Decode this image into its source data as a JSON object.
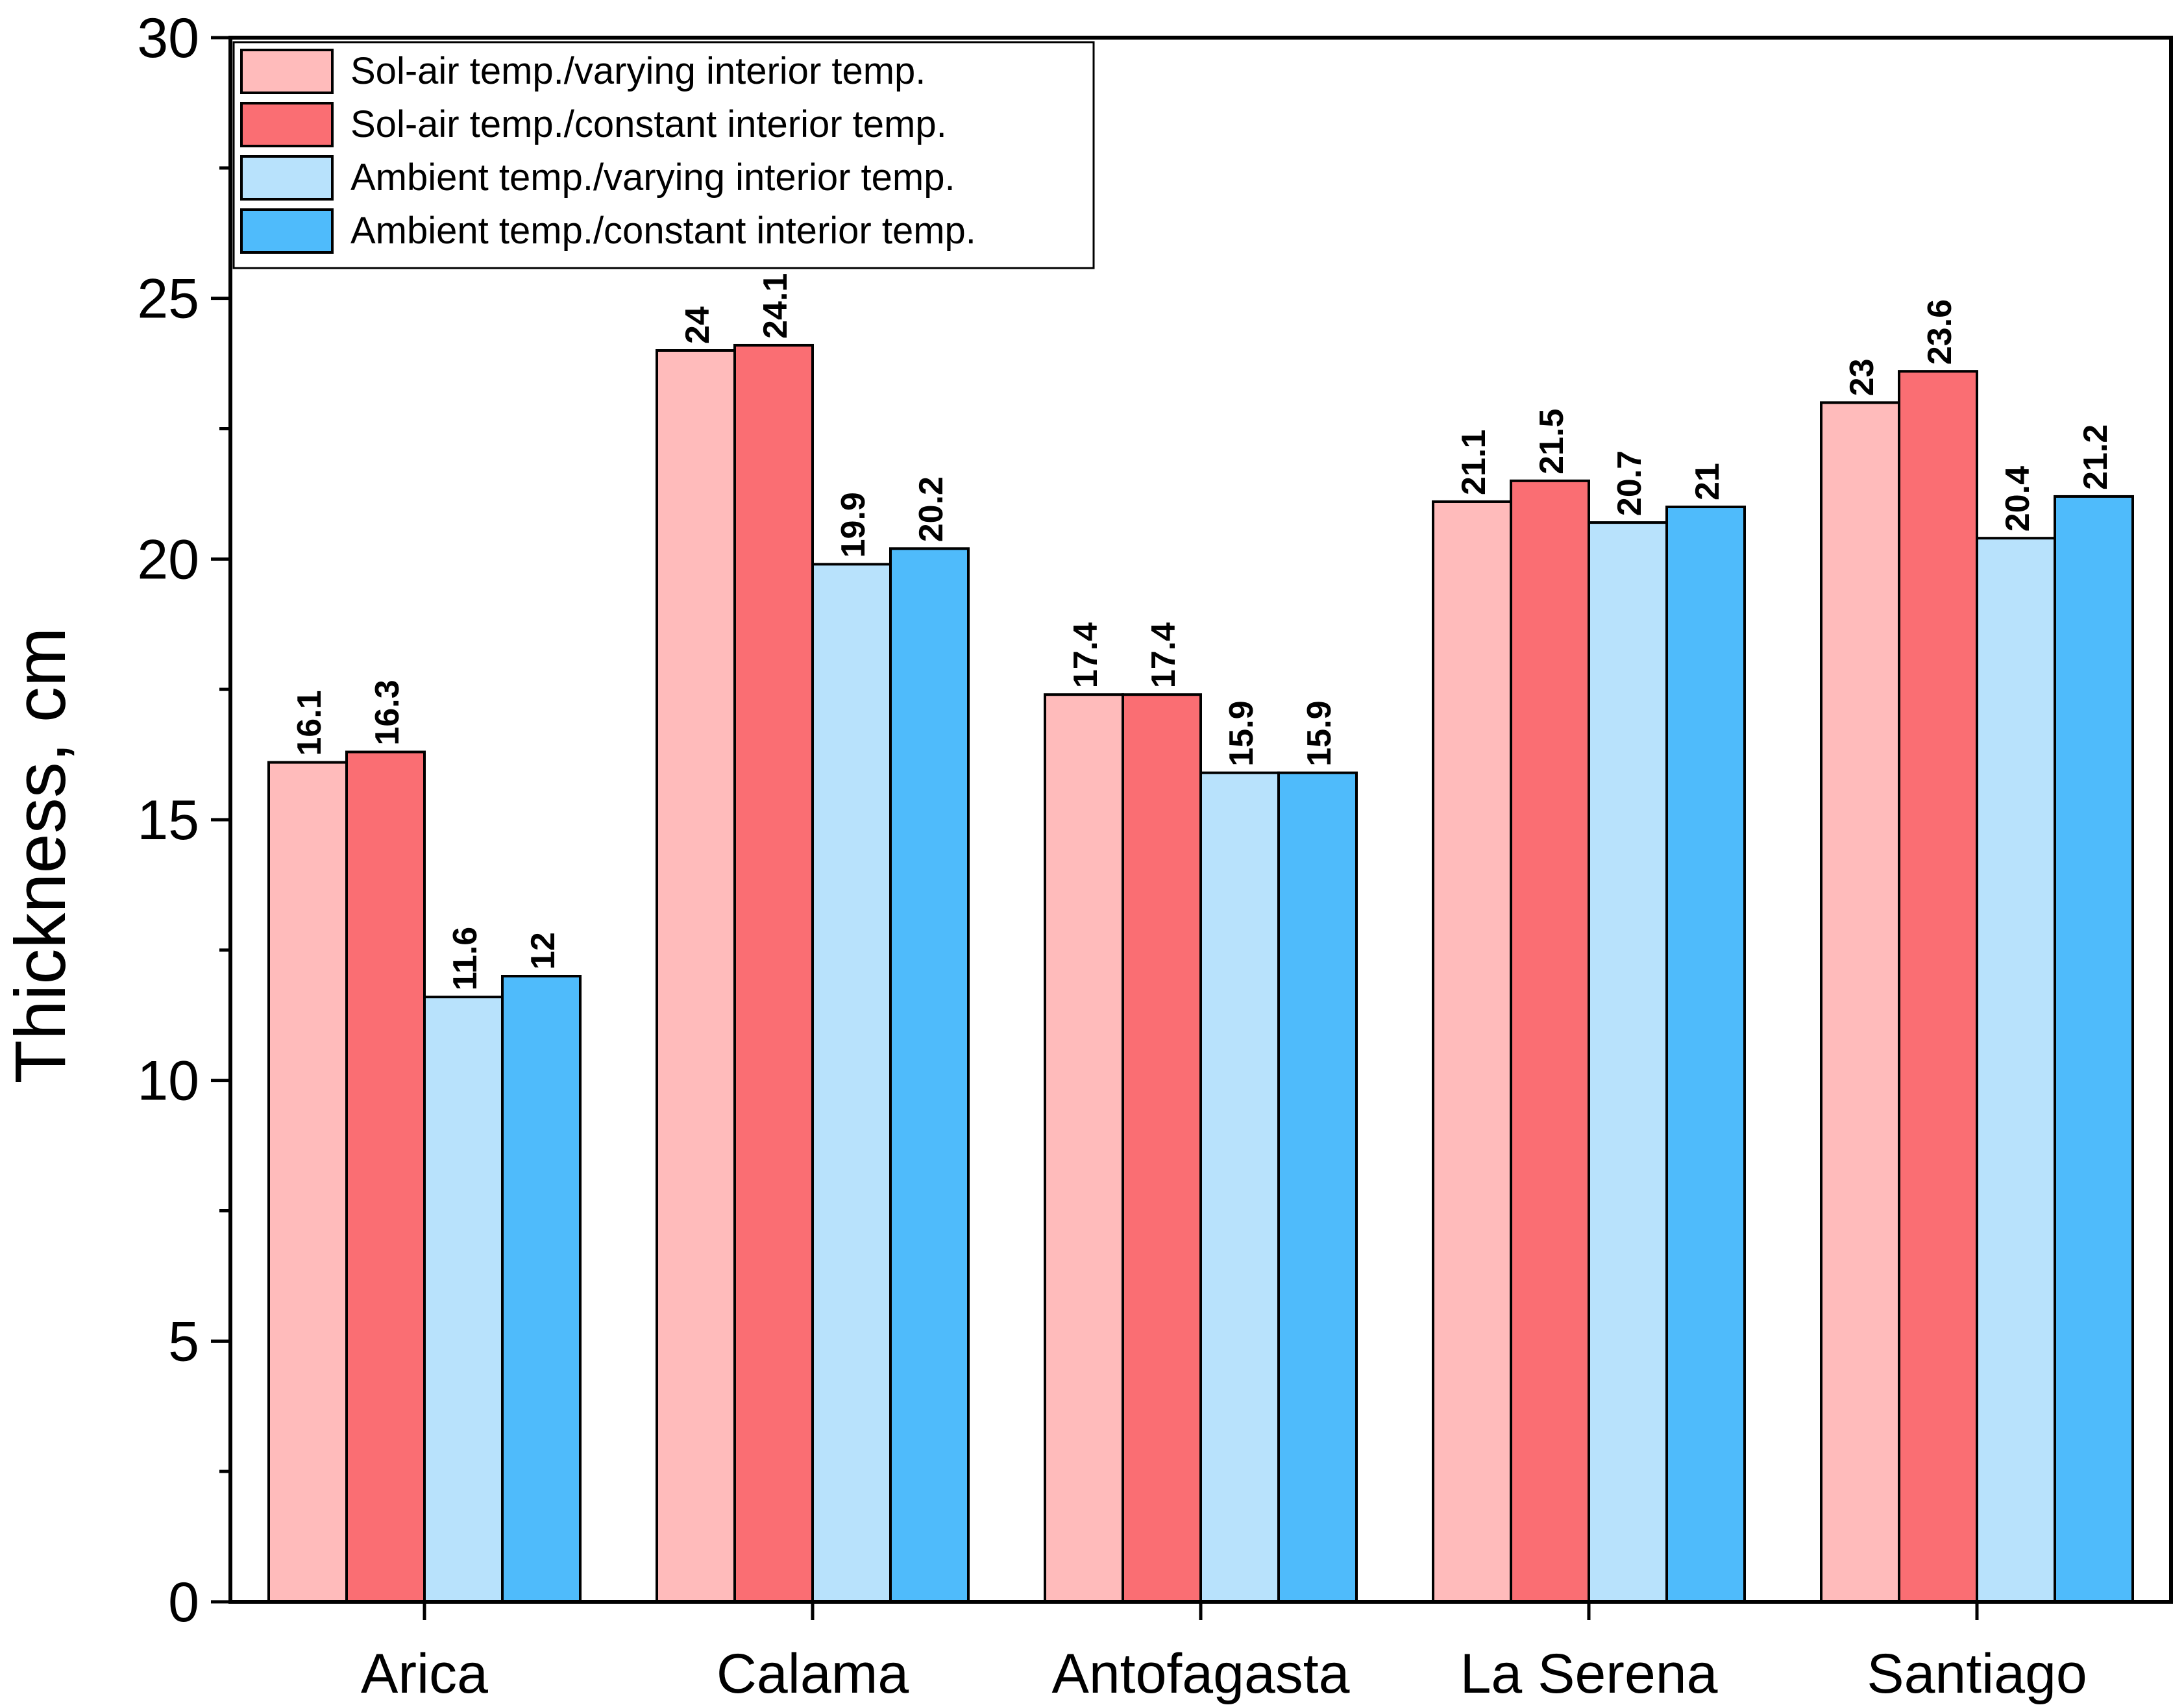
{
  "chart_data": {
    "type": "bar",
    "title": "",
    "xlabel": "",
    "ylabel": "Thickness, cm",
    "ylim": [
      0,
      30
    ],
    "yticks": [
      {
        "value": 0,
        "label": "0"
      },
      {
        "value": 5,
        "label": "5"
      },
      {
        "value": 10,
        "label": "10"
      },
      {
        "value": 15,
        "label": "15"
      },
      {
        "value": 20,
        "label": "20"
      },
      {
        "value": 25,
        "label": "25"
      },
      {
        "value": 30,
        "label": "30"
      }
    ],
    "categories": [
      "Arica",
      "Calama",
      "Antofagasta",
      "La Serena",
      "Santiago"
    ],
    "series": [
      {
        "name": "Sol-air temp./varying interior temp.",
        "color": "#FFBBBB",
        "values": [
          16.1,
          24,
          17.4,
          21.1,
          23
        ],
        "labels": [
          "16.1",
          "24",
          "17.4",
          "21.1",
          "23"
        ]
      },
      {
        "name": "Sol-air temp./constant interior temp.",
        "color": "#FA6E73",
        "values": [
          16.3,
          24.1,
          17.4,
          21.5,
          23.6
        ],
        "labels": [
          "16.3",
          "24.1",
          "17.4",
          "21.5",
          "23.6"
        ]
      },
      {
        "name": "Ambient temp./varying interior temp.",
        "color": "#B8E2FC",
        "values": [
          11.6,
          19.9,
          15.9,
          20.7,
          20.4
        ],
        "labels": [
          "11.6",
          "19.9",
          "15.9",
          "20.7",
          "20.4"
        ]
      },
      {
        "name": "Ambient temp./constant interior temp.",
        "color": "#4FBBFB",
        "values": [
          12,
          20.2,
          15.9,
          21,
          21.2
        ],
        "labels": [
          "12",
          "20.2",
          "15.9",
          "21",
          "21.2"
        ]
      }
    ],
    "legend_position": "top-left",
    "grid": false
  }
}
